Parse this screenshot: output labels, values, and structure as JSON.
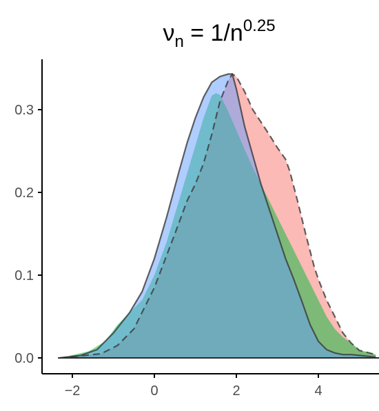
{
  "chart_data": {
    "type": "area",
    "title": {
      "base": "ν",
      "base_sub": "n",
      "equals": " = 1/n",
      "exp": "0.25"
    },
    "xlabel": "",
    "ylabel": "",
    "xlim": [
      -2.65,
      5.4
    ],
    "ylim": [
      -0.01,
      0.36
    ],
    "x_ticks": [
      -2,
      0,
      2,
      4
    ],
    "x_tick_labels": [
      "−2",
      "0",
      "2",
      "4"
    ],
    "y_ticks": [
      0.0,
      0.1,
      0.2,
      0.3
    ],
    "y_tick_labels": [
      "0.0",
      "0.1",
      "0.2",
      "0.3"
    ],
    "grid": false,
    "legend": "none",
    "series": [
      {
        "color": "#F8766D",
        "line": "dashed",
        "x": [
          -2.3,
          -1.3,
          -0.9,
          -0.5,
          0,
          0.5,
          0.8,
          1.0,
          1.2,
          1.4,
          1.6,
          1.8,
          1.9,
          2.0,
          2.2,
          2.4,
          2.6,
          2.8,
          3.0,
          3.1,
          3.2,
          3.3,
          3.5,
          3.7,
          3.9,
          4.0,
          4.2,
          4.4,
          4.6,
          4.8,
          5.0,
          5.4
        ],
        "y": [
          0.0,
          0.005,
          0.015,
          0.035,
          0.085,
          0.15,
          0.19,
          0.21,
          0.235,
          0.27,
          0.31,
          0.335,
          0.343,
          0.34,
          0.322,
          0.3,
          0.285,
          0.27,
          0.254,
          0.247,
          0.24,
          0.226,
          0.188,
          0.148,
          0.11,
          0.095,
          0.07,
          0.05,
          0.03,
          0.018,
          0.009,
          0.004
        ]
      },
      {
        "color": "#00BA38",
        "line": "none",
        "x": [
          -2.3,
          -1.6,
          -1.2,
          -0.9,
          -0.6,
          -0.3,
          0,
          0.3,
          0.6,
          0.9,
          1.2,
          1.4,
          1.5,
          1.6,
          1.8,
          2.0,
          2.2,
          2.4,
          2.6,
          2.8,
          3.0,
          3.2,
          3.4,
          3.6,
          3.8,
          4.0,
          4.2,
          4.4,
          4.6,
          4.8,
          5.0,
          5.4
        ],
        "y": [
          0.0,
          0.008,
          0.02,
          0.04,
          0.055,
          0.07,
          0.1,
          0.14,
          0.19,
          0.24,
          0.29,
          0.317,
          0.32,
          0.318,
          0.298,
          0.275,
          0.252,
          0.23,
          0.21,
          0.19,
          0.17,
          0.15,
          0.13,
          0.11,
          0.09,
          0.07,
          0.05,
          0.035,
          0.025,
          0.018,
          0.01,
          0.004
        ]
      },
      {
        "color": "#619CFF",
        "line": "solid",
        "x": [
          -2.3,
          -1.8,
          -1.4,
          -1.0,
          -0.6,
          -0.3,
          0,
          0.3,
          0.6,
          0.8,
          1.0,
          1.2,
          1.4,
          1.6,
          1.8,
          1.9,
          2.0,
          2.2,
          2.4,
          2.6,
          2.8,
          3.0,
          3.2,
          3.4,
          3.6,
          3.8,
          4.0,
          4.2,
          4.4,
          4.6,
          4.8,
          5.0,
          5.4
        ],
        "y": [
          0.0,
          0.003,
          0.01,
          0.03,
          0.055,
          0.08,
          0.12,
          0.17,
          0.225,
          0.26,
          0.29,
          0.315,
          0.333,
          0.34,
          0.343,
          0.343,
          0.325,
          0.28,
          0.245,
          0.21,
          0.18,
          0.15,
          0.12,
          0.095,
          0.068,
          0.04,
          0.02,
          0.01,
          0.006,
          0.004,
          0.004,
          0.003,
          0.001
        ]
      }
    ]
  }
}
